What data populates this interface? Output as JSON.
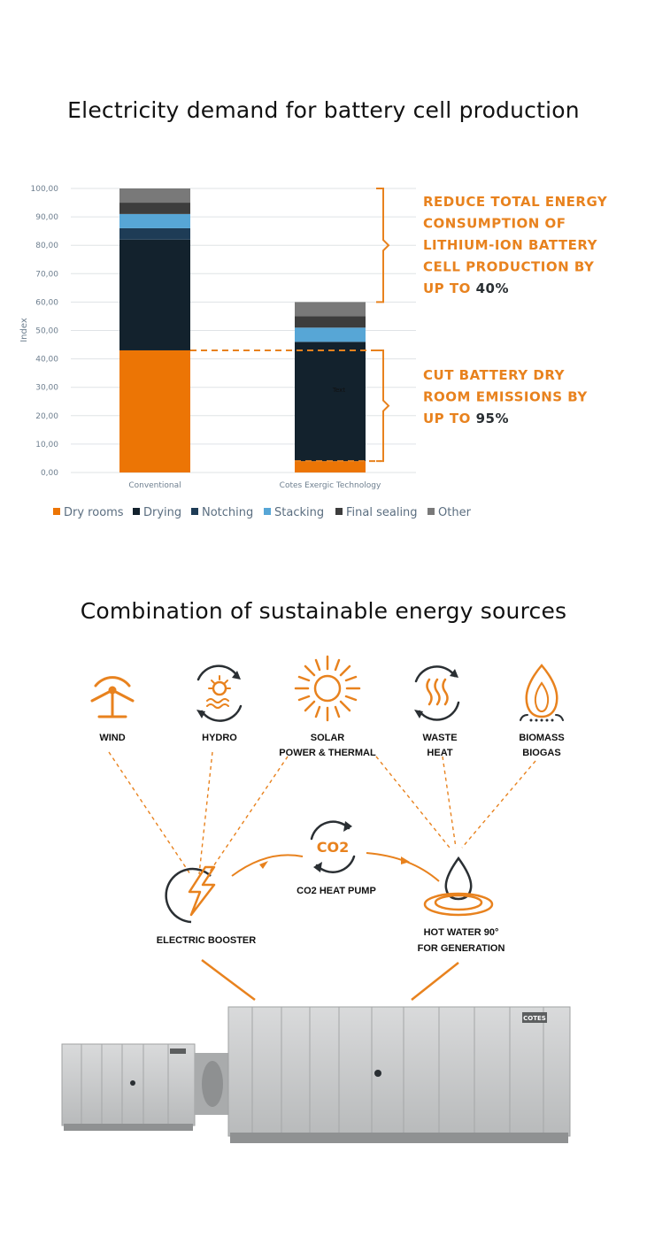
{
  "title_top": "Electricity demand for battery cell production",
  "title_bottom": "Combination of sustainable energy sources",
  "chart_data": {
    "type": "bar",
    "stacked": true,
    "categories": [
      "Conventional",
      "Cotes Exergic Technology"
    ],
    "series": [
      {
        "name": "Dry rooms",
        "color": "#ec7505",
        "values": [
          43,
          4
        ]
      },
      {
        "name": "Drying",
        "color": "#13222d",
        "values": [
          39,
          42
        ]
      },
      {
        "name": "Notching",
        "color": "#1e3c56",
        "values": [
          4,
          0
        ]
      },
      {
        "name": "Stacking",
        "color": "#57a6d6",
        "values": [
          5,
          5
        ]
      },
      {
        "name": "Final sealing",
        "color": "#3d3d3d",
        "values": [
          4,
          4
        ]
      },
      {
        "name": "Other",
        "color": "#797979",
        "values": [
          5,
          5
        ]
      }
    ],
    "ylabel": "Index",
    "ylim": [
      0,
      100
    ],
    "yticks": [
      "0,00",
      "10,00",
      "20,00",
      "30,00",
      "40,00",
      "50,00",
      "60,00",
      "70,00",
      "80,00",
      "90,00",
      "100,00"
    ],
    "grid": true,
    "legend_position": "bottom",
    "inner_label": "Text",
    "annotations": [
      {
        "lines": [
          "REDUCE TOTAL ENERGY",
          "CONSUMPTION OF",
          "LITHIUM-ION BATTERY",
          "CELL PRODUCTION BY"
        ],
        "last_prefix": "UP TO ",
        "last_value": "40%"
      },
      {
        "lines": [
          "CUT BATTERY DRY",
          "ROOM EMISSIONS BY"
        ],
        "last_prefix": "UP TO ",
        "last_value": "95%"
      }
    ]
  },
  "diagram": {
    "sources": [
      {
        "icon": "wind-turbine-icon",
        "lines": [
          "WIND"
        ]
      },
      {
        "icon": "hydro-icon",
        "lines": [
          "HYDRO"
        ]
      },
      {
        "icon": "sun-icon",
        "lines": [
          "SOLAR",
          "POWER & THERMAL"
        ]
      },
      {
        "icon": "waste-heat-icon",
        "lines": [
          "WASTE",
          "HEAT"
        ]
      },
      {
        "icon": "flame-icon",
        "lines": [
          "BIOMASS",
          "BIOGAS"
        ]
      }
    ],
    "co2_symbol": "CO2",
    "heat_pump_label": "CO2 HEAT PUMP",
    "electric_booster_label": "ELECTRIC BOOSTER",
    "hot_water_lines": [
      "HOT WATER 90°",
      "FOR GENERATION"
    ],
    "brand_badge": "COTES",
    "colors": {
      "accent": "#e8821e",
      "dark": "#2a2f33",
      "unit_body": "#c9cbcc"
    }
  }
}
